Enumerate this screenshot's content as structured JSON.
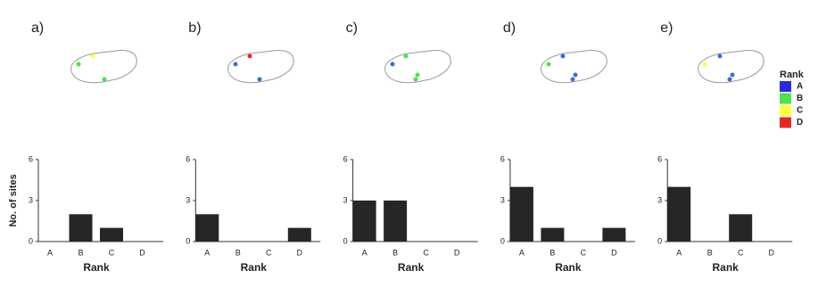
{
  "chart_data": [
    {
      "type": "bar",
      "panel_label": "a)",
      "ylabel": "No. of sites",
      "xlabel": "Rank",
      "categories": [
        "A",
        "B",
        "C",
        "D"
      ],
      "values": [
        0,
        2,
        1,
        0
      ],
      "color": "#262626",
      "ylim": [
        0,
        6
      ],
      "yticks": [
        0,
        3,
        6
      ]
    },
    {
      "type": "bar",
      "panel_label": "b)",
      "xlabel": "Rank",
      "categories": [
        "A",
        "B",
        "C",
        "D"
      ],
      "values": [
        2,
        0,
        0,
        1
      ],
      "color": "#262626",
      "ylim": [
        0,
        6
      ],
      "yticks": [
        0,
        3,
        6
      ]
    },
    {
      "type": "bar",
      "panel_label": "c)",
      "xlabel": "Rank",
      "categories": [
        "A",
        "B",
        "C",
        "D"
      ],
      "values": [
        3,
        3,
        0,
        0
      ],
      "color": "#262626",
      "ylim": [
        0,
        6
      ],
      "yticks": [
        0,
        3,
        6
      ]
    },
    {
      "type": "bar",
      "panel_label": "d)",
      "xlabel": "Rank",
      "categories": [
        "A",
        "B",
        "C",
        "D"
      ],
      "values": [
        4,
        1,
        0,
        1
      ],
      "color": "#262626",
      "ylim": [
        0,
        6
      ],
      "yticks": [
        0,
        3,
        6
      ]
    },
    {
      "type": "bar",
      "panel_label": "e)",
      "xlabel": "Rank",
      "categories": [
        "A",
        "B",
        "C",
        "D"
      ],
      "values": [
        4,
        0,
        2,
        0
      ],
      "color": "#262626",
      "ylim": [
        0,
        6
      ],
      "yticks": [
        0,
        3,
        6
      ]
    }
  ],
  "legend": {
    "title": "Rank",
    "items": [
      {
        "label": "A",
        "color": "#2b2bd9"
      },
      {
        "label": "B",
        "color": "#4fe04f"
      },
      {
        "label": "C",
        "color": "#ffff40"
      },
      {
        "label": "D",
        "color": "#e02a2a"
      }
    ]
  }
}
